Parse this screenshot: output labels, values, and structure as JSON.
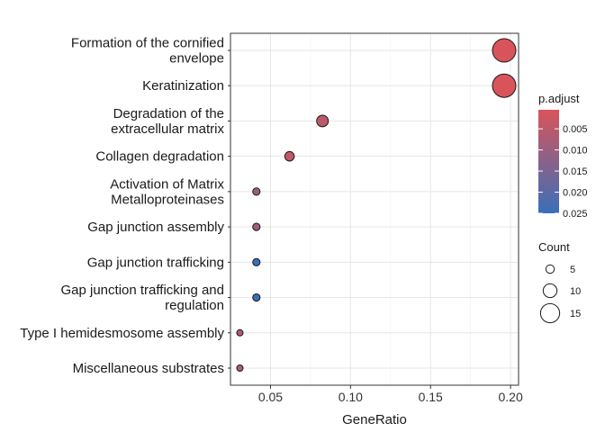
{
  "chart_data": {
    "type": "scatter",
    "xlabel": "GeneRatio",
    "xlim": [
      0.025,
      0.205
    ],
    "xticks": [
      {
        "value": 0.05,
        "label": "0.05"
      },
      {
        "value": 0.1,
        "label": "0.10"
      },
      {
        "value": 0.15,
        "label": "0.15"
      },
      {
        "value": 0.2,
        "label": "0.20"
      }
    ],
    "grid": true,
    "points": [
      {
        "term": [
          "Formation of the cornified",
          "envelope"
        ],
        "gene_ratio": 0.196,
        "p_adjust": 0.0005,
        "count": 19
      },
      {
        "term": [
          "Keratinization"
        ],
        "gene_ratio": 0.196,
        "p_adjust": 0.0005,
        "count": 19
      },
      {
        "term": [
          "Degradation of the",
          "extracellular matrix"
        ],
        "gene_ratio": 0.0825,
        "p_adjust": 0.005,
        "count": 8
      },
      {
        "term": [
          "Collagen degradation"
        ],
        "gene_ratio": 0.0619,
        "p_adjust": 0.0045,
        "count": 6
      },
      {
        "term": [
          "Activation of Matrix",
          "Metalloproteinases"
        ],
        "gene_ratio": 0.0412,
        "p_adjust": 0.011,
        "count": 4
      },
      {
        "term": [
          "Gap junction assembly"
        ],
        "gene_ratio": 0.0412,
        "p_adjust": 0.01,
        "count": 4
      },
      {
        "term": [
          "Gap junction trafficking"
        ],
        "gene_ratio": 0.0412,
        "p_adjust": 0.025,
        "count": 4
      },
      {
        "term": [
          "Gap junction trafficking and",
          "regulation"
        ],
        "gene_ratio": 0.0412,
        "p_adjust": 0.025,
        "count": 4
      },
      {
        "term": [
          "Type I hemidesmosome assembly"
        ],
        "gene_ratio": 0.0309,
        "p_adjust": 0.006,
        "count": 3
      },
      {
        "term": [
          "Miscellaneous substrates"
        ],
        "gene_ratio": 0.0309,
        "p_adjust": 0.006,
        "count": 3
      }
    ],
    "color_legend": {
      "title": "p.adjust",
      "range": [
        0.0005,
        0.025
      ],
      "ticks": [
        {
          "value": 0.005,
          "label": "0.005"
        },
        {
          "value": 0.01,
          "label": "0.010"
        },
        {
          "value": 0.015,
          "label": "0.015"
        },
        {
          "value": 0.02,
          "label": "0.020"
        },
        {
          "value": 0.025,
          "label": "0.025"
        }
      ],
      "low_color": "#d9545a",
      "high_color": "#3a6fb8"
    },
    "size_legend": {
      "title": "Count",
      "range": [
        3,
        19
      ],
      "entries": [
        {
          "value": 5,
          "label": "5"
        },
        {
          "value": 10,
          "label": "10"
        },
        {
          "value": 15,
          "label": "15"
        }
      ]
    },
    "legend_position": "right"
  }
}
